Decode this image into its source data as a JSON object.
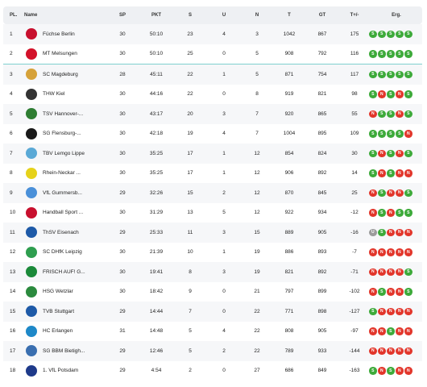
{
  "headers": {
    "pl": "PL.",
    "name": "Name",
    "sp": "SP",
    "pkt": "PKT",
    "s": "S",
    "u": "U",
    "n": "N",
    "t": "T",
    "gt": "GT",
    "tpm": "T+/-",
    "erg": "Erg."
  },
  "colors": {
    "win": "#3daa3a",
    "loss": "#e2362b",
    "draw": "#9b9b9b",
    "separator": "#7fd0cf"
  },
  "rows": [
    {
      "pl": "1",
      "name": "Füchse Berlin",
      "sp": "30",
      "pkt": "50:10",
      "s": "23",
      "u": "4",
      "n": "3",
      "t": "1042",
      "gt": "867",
      "tpm": "175",
      "erg": [
        "S",
        "S",
        "S",
        "S",
        "S"
      ],
      "logo_color": "#c8102e",
      "logo_icon": "fox-crest-icon"
    },
    {
      "pl": "2",
      "name": "MT Melsungen",
      "sp": "30",
      "pkt": "50:10",
      "s": "25",
      "u": "0",
      "n": "5",
      "t": "908",
      "gt": "792",
      "tpm": "116",
      "erg": [
        "S",
        "S",
        "S",
        "S",
        "S"
      ],
      "logo_color": "#d3122a",
      "logo_icon": "mt-crest-icon"
    },
    {
      "pl": "3",
      "name": "SC Magdeburg",
      "sp": "28",
      "pkt": "45:11",
      "s": "22",
      "u": "1",
      "n": "5",
      "t": "871",
      "gt": "754",
      "tpm": "117",
      "erg": [
        "S",
        "S",
        "S",
        "S",
        "S"
      ],
      "logo_color": "#d6a23a",
      "logo_icon": "sc-crest-icon"
    },
    {
      "pl": "4",
      "name": "THW Kiel",
      "sp": "30",
      "pkt": "44:16",
      "s": "22",
      "u": "0",
      "n": "8",
      "t": "919",
      "gt": "821",
      "tpm": "98",
      "erg": [
        "S",
        "N",
        "S",
        "N",
        "S"
      ],
      "logo_color": "#333333",
      "logo_icon": "thw-crest-icon"
    },
    {
      "pl": "5",
      "name": "TSV Hannover-...",
      "sp": "30",
      "pkt": "43:17",
      "s": "20",
      "u": "3",
      "n": "7",
      "t": "920",
      "gt": "865",
      "tpm": "55",
      "erg": [
        "N",
        "S",
        "S",
        "N",
        "S"
      ],
      "logo_color": "#2e7d32",
      "logo_icon": "tsv-crest-icon"
    },
    {
      "pl": "6",
      "name": "SG Flensburg-...",
      "sp": "30",
      "pkt": "42:18",
      "s": "19",
      "u": "4",
      "n": "7",
      "t": "1004",
      "gt": "895",
      "tpm": "109",
      "erg": [
        "S",
        "S",
        "S",
        "S",
        "N"
      ],
      "logo_color": "#1a1a1a",
      "logo_icon": "sg-crest-icon"
    },
    {
      "pl": "7",
      "name": "TBV Lemgo Lippe",
      "sp": "30",
      "pkt": "35:25",
      "s": "17",
      "u": "1",
      "n": "12",
      "t": "854",
      "gt": "824",
      "tpm": "30",
      "erg": [
        "S",
        "N",
        "S",
        "N",
        "S"
      ],
      "logo_color": "#5aa9d6",
      "logo_icon": "tbv-crest-icon"
    },
    {
      "pl": "8",
      "name": "Rhein-Neckar ...",
      "sp": "30",
      "pkt": "35:25",
      "s": "17",
      "u": "1",
      "n": "12",
      "t": "906",
      "gt": "892",
      "tpm": "14",
      "erg": [
        "S",
        "N",
        "S",
        "N",
        "N"
      ],
      "logo_color": "#e6d21a",
      "logo_icon": "lion-crest-icon"
    },
    {
      "pl": "9",
      "name": "VfL Gummersb...",
      "sp": "29",
      "pkt": "32:26",
      "s": "15",
      "u": "2",
      "n": "12",
      "t": "870",
      "gt": "845",
      "tpm": "25",
      "erg": [
        "N",
        "S",
        "N",
        "N",
        "S"
      ],
      "logo_color": "#4a90d9",
      "logo_icon": "vfl-crest-icon"
    },
    {
      "pl": "10",
      "name": "Handball Sport ...",
      "sp": "30",
      "pkt": "31:29",
      "s": "13",
      "u": "5",
      "n": "12",
      "t": "922",
      "gt": "934",
      "tpm": "-12",
      "erg": [
        "N",
        "S",
        "N",
        "S",
        "S"
      ],
      "logo_color": "#c8102e",
      "logo_icon": "hsv-crest-icon"
    },
    {
      "pl": "11",
      "name": "ThSV Eisenach",
      "sp": "29",
      "pkt": "25:33",
      "s": "11",
      "u": "3",
      "n": "15",
      "t": "889",
      "gt": "905",
      "tpm": "-16",
      "erg": [
        "U",
        "S",
        "N",
        "N",
        "N"
      ],
      "logo_color": "#1e5aa8",
      "logo_icon": "thsv-crest-icon"
    },
    {
      "pl": "12",
      "name": "SC DHfK Leipzig",
      "sp": "30",
      "pkt": "21:39",
      "s": "10",
      "u": "1",
      "n": "19",
      "t": "886",
      "gt": "893",
      "tpm": "-7",
      "erg": [
        "N",
        "N",
        "N",
        "N",
        "N"
      ],
      "logo_color": "#2e9e4f",
      "logo_icon": "dhfk-crest-icon"
    },
    {
      "pl": "13",
      "name": "FRISCH AUF! G...",
      "sp": "30",
      "pkt": "19:41",
      "s": "8",
      "u": "3",
      "n": "19",
      "t": "821",
      "gt": "892",
      "tpm": "-71",
      "erg": [
        "N",
        "N",
        "N",
        "N",
        "S"
      ],
      "logo_color": "#1b8a3a",
      "logo_icon": "frischauf-crest-icon"
    },
    {
      "pl": "14",
      "name": "HSG Wetzlar",
      "sp": "30",
      "pkt": "18:42",
      "s": "9",
      "u": "0",
      "n": "21",
      "t": "797",
      "gt": "899",
      "tpm": "-102",
      "erg": [
        "N",
        "S",
        "N",
        "N",
        "S"
      ],
      "logo_color": "#2b8a3e",
      "logo_icon": "hsg-crest-icon"
    },
    {
      "pl": "15",
      "name": "TVB Stuttgart",
      "sp": "29",
      "pkt": "14:44",
      "s": "7",
      "u": "0",
      "n": "22",
      "t": "771",
      "gt": "898",
      "tpm": "-127",
      "erg": [
        "S",
        "N",
        "N",
        "N",
        "N"
      ],
      "logo_color": "#1e5aa8",
      "logo_icon": "tvb-crest-icon"
    },
    {
      "pl": "16",
      "name": "HC Erlangen",
      "sp": "31",
      "pkt": "14:48",
      "s": "5",
      "u": "4",
      "n": "22",
      "t": "808",
      "gt": "905",
      "tpm": "-97",
      "erg": [
        "N",
        "N",
        "S",
        "N",
        "N"
      ],
      "logo_color": "#1e88c8",
      "logo_icon": "hce-crest-icon"
    },
    {
      "pl": "17",
      "name": "SG BBM Bietigh...",
      "sp": "29",
      "pkt": "12:46",
      "s": "5",
      "u": "2",
      "n": "22",
      "t": "789",
      "gt": "933",
      "tpm": "-144",
      "erg": [
        "N",
        "N",
        "N",
        "N",
        "N"
      ],
      "logo_color": "#3a6fb0",
      "logo_icon": "bbm-crest-icon"
    },
    {
      "pl": "18",
      "name": "1. VfL Potsdam",
      "sp": "29",
      "pkt": "4:54",
      "s": "2",
      "u": "0",
      "n": "27",
      "t": "686",
      "gt": "849",
      "tpm": "-163",
      "erg": [
        "S",
        "N",
        "S",
        "N",
        "N"
      ],
      "logo_color": "#1e3a8a",
      "logo_icon": "potsdam-crest-icon"
    }
  ]
}
